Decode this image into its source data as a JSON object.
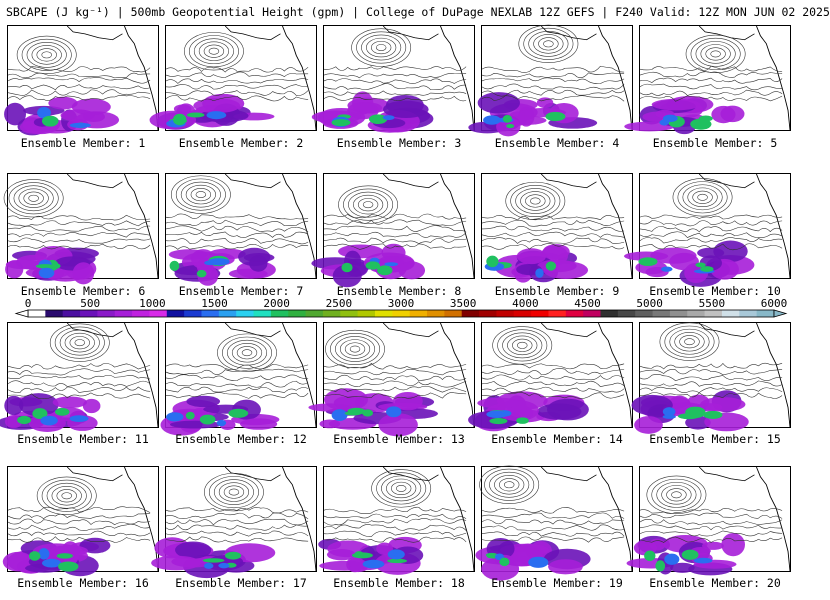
{
  "title": "SBCAPE (J kg⁻¹) | 500mb Geopotential Height (gpm) | College of DuPage NEXLAB 12Z GEFS | F240 Valid: 12Z MON JUN 02 2025",
  "members": [
    "Ensemble Member: 1",
    "Ensemble Member: 2",
    "Ensemble Member: 3",
    "Ensemble Member: 4",
    "Ensemble Member: 5",
    "Ensemble Member: 6",
    "Ensemble Member: 7",
    "Ensemble Member: 8",
    "Ensemble Member: 9",
    "Ensemble Member: 10",
    "Ensemble Member: 11",
    "Ensemble Member: 12",
    "Ensemble Member: 13",
    "Ensemble Member: 14",
    "Ensemble Member: 15",
    "Ensemble Member: 16",
    "Ensemble Member: 17",
    "Ensemble Member: 18",
    "Ensemble Member: 19",
    "Ensemble Member: 20"
  ],
  "colorbar": {
    "ticks": [
      "0",
      "500",
      "1000",
      "1500",
      "2000",
      "2500",
      "3000",
      "3500",
      "4000",
      "4500",
      "5000",
      "5500",
      "6000"
    ],
    "colors": [
      "#ffffff",
      "#2a0a6e",
      "#4b0fa0",
      "#6a12b8",
      "#8a1ac8",
      "#a61ed8",
      "#c022e0",
      "#d82ae8",
      "#1010a0",
      "#1a3ad0",
      "#2a6ef0",
      "#2aa0f0",
      "#2ad0f0",
      "#20e0c0",
      "#20c060",
      "#30b040",
      "#50a830",
      "#70b020",
      "#90c010",
      "#b0c800",
      "#e0e000",
      "#f0d000",
      "#f0b000",
      "#e09000",
      "#d07000",
      "#800000",
      "#a00000",
      "#c00000",
      "#d80000",
      "#f00000",
      "#ff2020",
      "#e00040",
      "#c00060",
      "#303030",
      "#484848",
      "#606060",
      "#787878",
      "#909090",
      "#a8a8a8",
      "#c0c0c0",
      "#d0e0e8",
      "#a8c8d8",
      "#88b8c8"
    ]
  }
}
